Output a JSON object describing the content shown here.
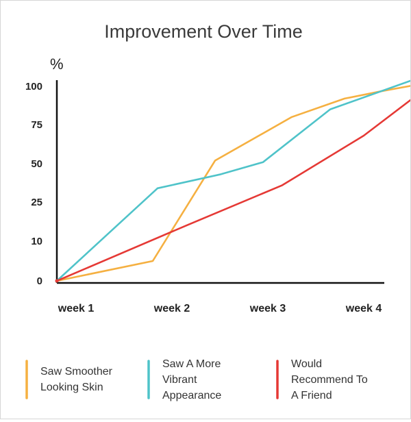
{
  "chart_data": {
    "type": "line",
    "title": "Improvement Over Time",
    "ylabel": "%",
    "xlabel": "",
    "categories": [
      "week 1",
      "week 2",
      "week 3",
      "week 4"
    ],
    "y_ticks": [
      {
        "label": "100",
        "value": 100
      },
      {
        "label": "75",
        "value": 75
      },
      {
        "label": "50",
        "value": 50
      },
      {
        "label": "25",
        "value": 25
      },
      {
        "label": "10",
        "value": 10
      },
      {
        "label": "0",
        "value": 0
      }
    ],
    "ylim": [
      0,
      100
    ],
    "grid": false,
    "legend_position": "bottom",
    "series": [
      {
        "name": "Saw Smoother Looking Skin",
        "legend_lines": [
          "Saw Smoother",
          "Looking Skin"
        ],
        "color": "#f5b041",
        "points": [
          {
            "x": 0,
            "y": 0
          },
          {
            "x": 0.8,
            "y": 5
          },
          {
            "x": 1.45,
            "y": 52
          },
          {
            "x": 2.25,
            "y": 80
          },
          {
            "x": 2.8,
            "y": 92
          },
          {
            "x": 3.2,
            "y": 97
          },
          {
            "x": 3.55,
            "y": 101
          }
        ]
      },
      {
        "name": "Saw A More Vibrant Appearance",
        "legend_lines": [
          "Saw A More",
          "Vibrant",
          "Appearance"
        ],
        "color": "#4fc3c9",
        "points": [
          {
            "x": 0,
            "y": 0
          },
          {
            "x": 0.85,
            "y": 34
          },
          {
            "x": 1.5,
            "y": 43
          },
          {
            "x": 1.95,
            "y": 51
          },
          {
            "x": 2.65,
            "y": 85
          },
          {
            "x": 3.55,
            "y": 105
          }
        ]
      },
      {
        "name": "Would Recommend To A Friend",
        "legend_lines": [
          "Would",
          "Recommend To",
          "A Friend"
        ],
        "color": "#e53935",
        "points": [
          {
            "x": 0,
            "y": 0
          },
          {
            "x": 1.15,
            "y": 16
          },
          {
            "x": 2.15,
            "y": 36
          },
          {
            "x": 3.0,
            "y": 68
          },
          {
            "x": 3.55,
            "y": 94
          }
        ]
      }
    ]
  }
}
